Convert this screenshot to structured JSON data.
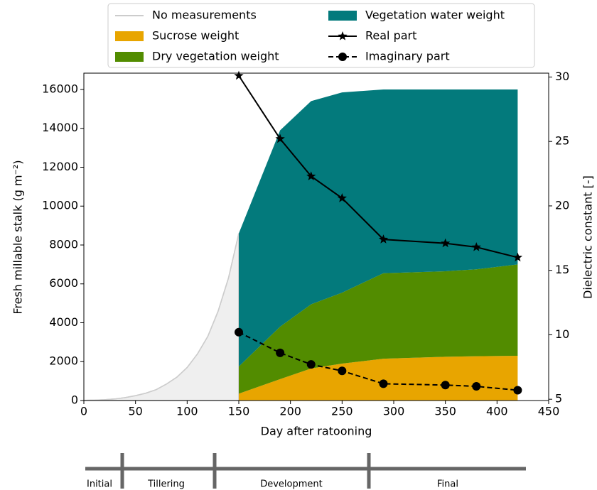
{
  "chart_data": {
    "type": "area",
    "xlabel": "Day after ratooning",
    "ylabel": "Fresh millable stalk (g m⁻²)",
    "y2label": "Dielectric constant [-]",
    "xlim": [
      0,
      450
    ],
    "xticks": [
      0,
      50,
      100,
      150,
      200,
      250,
      300,
      350,
      400,
      450
    ],
    "ylim": [
      0,
      16840
    ],
    "yticks": [
      0,
      2000,
      4000,
      6000,
      8000,
      10000,
      12000,
      14000,
      16000
    ],
    "y2lim": [
      4.9,
      30.3
    ],
    "y2ticks": [
      5,
      10,
      15,
      20,
      25,
      30
    ],
    "series": [
      {
        "name": "No measurements",
        "type": "area",
        "color": "#cccccc",
        "x": [
          0,
          10,
          20,
          30,
          40,
          50,
          60,
          70,
          80,
          90,
          100,
          110,
          120,
          130,
          140,
          150
        ],
        "values": [
          10,
          20,
          40,
          80,
          150,
          250,
          380,
          560,
          850,
          1200,
          1700,
          2400,
          3300,
          4600,
          6300,
          8600
        ]
      },
      {
        "name": "Sucrose weight",
        "type": "area",
        "stack": "crop",
        "color": "#e8a500",
        "x": [
          150,
          190,
          220,
          250,
          290,
          350,
          380,
          420
        ],
        "values": [
          350,
          1100,
          1650,
          1900,
          2150,
          2250,
          2280,
          2300
        ]
      },
      {
        "name": "Dry vegetation weight",
        "type": "area",
        "stack": "crop",
        "color": "#528c00",
        "x": [
          150,
          190,
          220,
          250,
          290,
          350,
          380,
          420
        ],
        "values": [
          1400,
          2700,
          3300,
          3650,
          4400,
          4400,
          4470,
          4700
        ]
      },
      {
        "name": "Vegetation water weight",
        "type": "area",
        "stack": "crop",
        "color": "#037a7c",
        "x": [
          150,
          190,
          220,
          250,
          290,
          350,
          380,
          420
        ],
        "values": [
          6850,
          10100,
          10450,
          10300,
          9450,
          9350,
          9250,
          9000
        ]
      },
      {
        "name": "Real part",
        "type": "line",
        "axis": "y2",
        "marker": "star",
        "color": "#000000",
        "x": [
          150,
          190,
          220,
          250,
          290,
          350,
          380,
          420
        ],
        "values": [
          30.1,
          25.2,
          22.3,
          20.6,
          17.4,
          17.1,
          16.8,
          16.0
        ]
      },
      {
        "name": "Imaginary part",
        "type": "line",
        "axis": "y2",
        "marker": "circle",
        "dashed": true,
        "color": "#000000",
        "x": [
          150,
          190,
          220,
          250,
          290,
          350,
          380,
          420
        ],
        "values": [
          10.2,
          8.6,
          7.7,
          7.2,
          6.2,
          6.1,
          6.0,
          5.7
        ]
      }
    ]
  },
  "phase_bar": {
    "labels": [
      "Initial",
      "Tillering",
      "Development",
      "Final"
    ]
  }
}
